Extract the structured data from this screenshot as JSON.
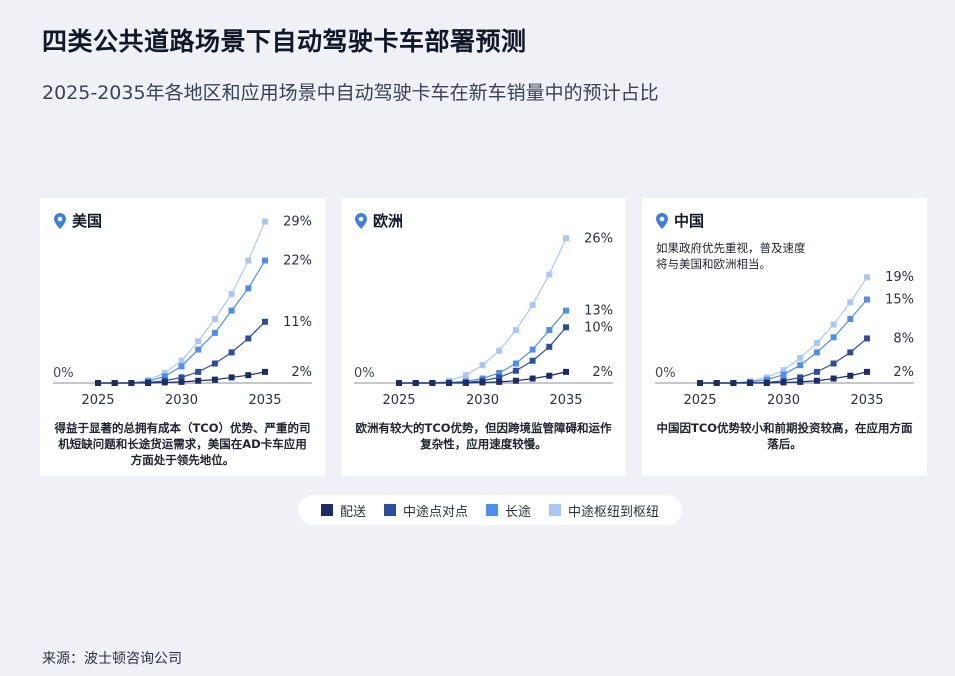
{
  "title": "四类公共道路场景下自动驾驶卡车部署预测",
  "subtitle": "2025-2035年各地区和应用场景中自动驾驶卡车在新车销量中的预计占比",
  "source": "来源：波士顿咨询公司",
  "colors": {
    "配送": "#1b2c6b",
    "中途点对点": "#2b4d9e",
    "长途": "#4d8ff0",
    "中途枢纽到枢纽": "#a9c8f7",
    "background": "#eff1f6",
    "pin": "#3d7fe0"
  },
  "legend": [
    {
      "label": "配送"
    },
    {
      "label": "中途点对点"
    },
    {
      "label": "长途"
    },
    {
      "label": "中途枢纽到枢纽"
    }
  ],
  "chart_data": [
    {
      "type": "line",
      "region": "美国",
      "x": [
        2025,
        2026,
        2027,
        2028,
        2029,
        2030,
        2031,
        2032,
        2033,
        2034,
        2035
      ],
      "x_ticks": [
        "2025",
        "2030",
        "2035"
      ],
      "zero_label": "0%",
      "ylim": [
        0,
        30
      ],
      "series": [
        {
          "name": "配送",
          "values": [
            0,
            0,
            0,
            0,
            0.1,
            0.2,
            0.4,
            0.6,
            1.0,
            1.4,
            2
          ],
          "end_label": "2%"
        },
        {
          "name": "中途点对点",
          "values": [
            0,
            0,
            0,
            0.1,
            0.4,
            1.0,
            2.0,
            3.5,
            5.5,
            8.0,
            11
          ],
          "end_label": "11%"
        },
        {
          "name": "长途",
          "values": [
            0,
            0,
            0,
            0.3,
            1.2,
            3.0,
            6.0,
            9.0,
            13.0,
            17.0,
            22
          ],
          "end_label": "22%"
        },
        {
          "name": "中途枢纽到枢纽",
          "values": [
            0,
            0,
            0,
            0.5,
            1.8,
            4.0,
            7.5,
            11.5,
            16.0,
            22.0,
            29
          ],
          "end_label": "29%"
        }
      ],
      "note": "得益于显著的总拥有成本（TCO）优势、严重的司机短缺问题和长途货运需求，美国在AD卡车应用方面处于领先地位。",
      "annotation": ""
    },
    {
      "type": "line",
      "region": "欧洲",
      "x": [
        2025,
        2026,
        2027,
        2028,
        2029,
        2030,
        2031,
        2032,
        2033,
        2034,
        2035
      ],
      "x_ticks": [
        "2025",
        "2030",
        "2035"
      ],
      "zero_label": "0%",
      "ylim": [
        0,
        30
      ],
      "series": [
        {
          "name": "配送",
          "values": [
            0,
            0,
            0,
            0,
            0,
            0.1,
            0.2,
            0.4,
            0.8,
            1.3,
            2
          ],
          "end_label": "2%"
        },
        {
          "name": "中途点对点",
          "values": [
            0,
            0,
            0,
            0,
            0.1,
            0.4,
            1.0,
            2.2,
            4.0,
            6.5,
            10
          ],
          "end_label": "10%"
        },
        {
          "name": "长途",
          "values": [
            0,
            0,
            0,
            0.1,
            0.3,
            0.8,
            1.8,
            3.5,
            6.0,
            9.5,
            13
          ],
          "end_label": "13%"
        },
        {
          "name": "中途枢纽到枢纽",
          "values": [
            0,
            0,
            0,
            0.4,
            1.4,
            3.2,
            5.8,
            9.5,
            14.0,
            19.5,
            26
          ],
          "end_label": "26%"
        }
      ],
      "note": "欧洲有较大的TCO优势，但因跨境监管障碍和运作复杂性，应用速度较慢。",
      "annotation": ""
    },
    {
      "type": "line",
      "region": "中国",
      "x": [
        2025,
        2026,
        2027,
        2028,
        2029,
        2030,
        2031,
        2032,
        2033,
        2034,
        2035
      ],
      "x_ticks": [
        "2025",
        "2030",
        "2035"
      ],
      "zero_label": "0%",
      "ylim": [
        0,
        30
      ],
      "series": [
        {
          "name": "配送",
          "values": [
            0,
            0,
            0,
            0,
            0,
            0.1,
            0.2,
            0.4,
            0.8,
            1.3,
            2
          ],
          "end_label": "2%"
        },
        {
          "name": "中途点对点",
          "values": [
            0,
            0,
            0,
            0,
            0.1,
            0.4,
            1.0,
            2.0,
            3.5,
            5.5,
            8
          ],
          "end_label": "8%"
        },
        {
          "name": "长途",
          "values": [
            0,
            0,
            0,
            0.2,
            0.6,
            1.5,
            3.2,
            5.5,
            8.2,
            11.5,
            15
          ],
          "end_label": "15%"
        },
        {
          "name": "中途枢纽到枢纽",
          "values": [
            0,
            0,
            0,
            0.3,
            1.0,
            2.3,
            4.5,
            7.2,
            10.5,
            14.5,
            19
          ],
          "end_label": "19%"
        }
      ],
      "note": "中国因TCO优势较小和前期投资较高，在应用方面落后。",
      "annotation": "如果政府优先重视，普及速度将与美国和欧洲相当。"
    }
  ]
}
